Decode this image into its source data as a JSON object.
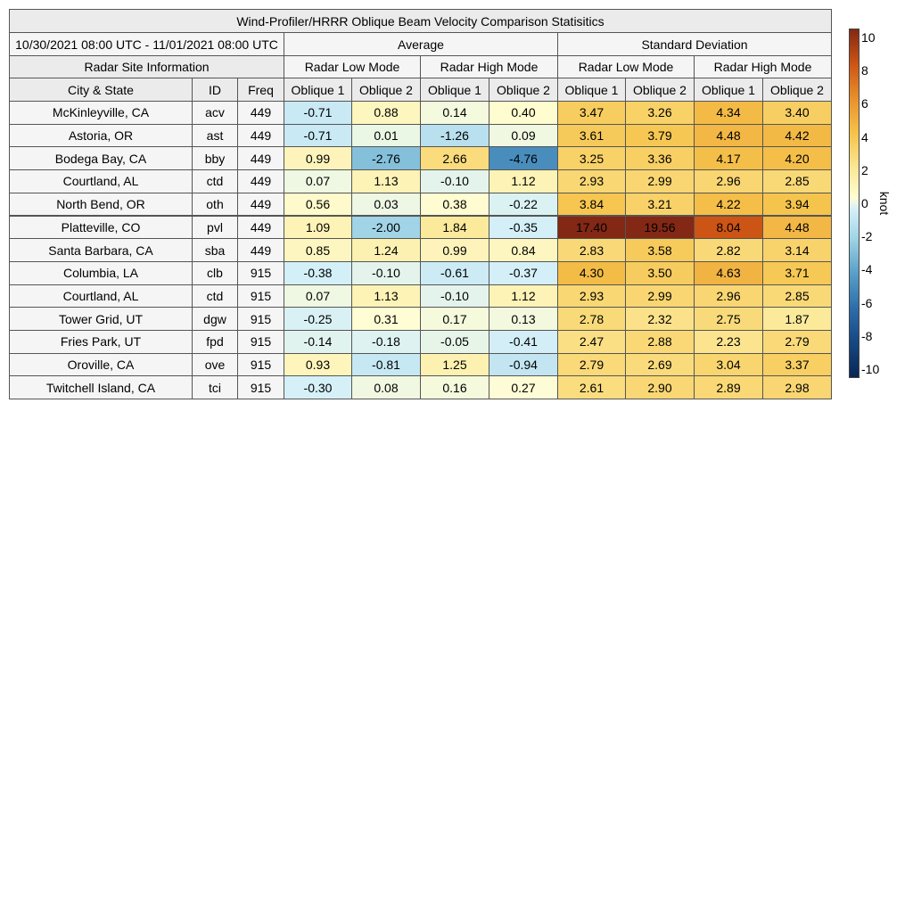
{
  "title": "Wind-Profiler/HRRR Oblique Beam Velocity Comparison Statisitics",
  "date_range": "10/30/2021 08:00 UTC - 11/01/2021 08:00 UTC",
  "groups": {
    "average": "Average",
    "std": "Standard Deviation"
  },
  "site_info_label": "Radar Site Information",
  "modes": [
    "Radar Low Mode",
    "Radar High Mode",
    "Radar Low Mode",
    "Radar High Mode"
  ],
  "col_headers": [
    "City & State",
    "ID",
    "Freq",
    "Oblique 1",
    "Oblique 2",
    "Oblique 1",
    "Oblique 2",
    "Oblique 1",
    "Oblique 2",
    "Oblique 1",
    "Oblique 2"
  ],
  "colorbar": {
    "unit": "knot",
    "range": [
      -10,
      10
    ],
    "ticks": [
      "10",
      "8",
      "6",
      "4",
      "2",
      "0",
      "-2",
      "-4",
      "-6",
      "-8",
      "-10"
    ]
  },
  "chart_data": {
    "type": "table",
    "title": "Wind-Profiler/HRRR Oblique Beam Velocity Comparison Statisitics",
    "period": "10/30/2021 08:00 UTC - 11/01/2021 08:00 UTC",
    "color_scale": {
      "unit": "knot",
      "min": -10,
      "max": 10,
      "colormap": "diverging blue-white-yellow-red"
    },
    "columns": [
      "City & State",
      "ID",
      "Freq",
      "Avg Low Oblique 1",
      "Avg Low Oblique 2",
      "Avg High Oblique 1",
      "Avg High Oblique 2",
      "Std Low Oblique 1",
      "Std Low Oblique 2",
      "Std High Oblique 1",
      "Std High Oblique 2"
    ],
    "rows": [
      {
        "city": "McKinleyville, CA",
        "id": "acv",
        "freq": "449",
        "values": [
          "-0.71",
          "0.88",
          "0.14",
          "0.40",
          "3.47",
          "3.26",
          "4.34",
          "3.40"
        ]
      },
      {
        "city": "Astoria, OR",
        "id": "ast",
        "freq": "449",
        "values": [
          "-0.71",
          "0.01",
          "-1.26",
          "0.09",
          "3.61",
          "3.79",
          "4.48",
          "4.42"
        ]
      },
      {
        "city": "Bodega Bay, CA",
        "id": "bby",
        "freq": "449",
        "values": [
          "0.99",
          "-2.76",
          "2.66",
          "-4.76",
          "3.25",
          "3.36",
          "4.17",
          "4.20"
        ]
      },
      {
        "city": "Courtland, AL",
        "id": "ctd",
        "freq": "449",
        "values": [
          "0.07",
          "1.13",
          "-0.10",
          "1.12",
          "2.93",
          "2.99",
          "2.96",
          "2.85"
        ]
      },
      {
        "city": "North Bend, OR",
        "id": "oth",
        "freq": "449",
        "values": [
          "0.56",
          "0.03",
          "0.38",
          "-0.22",
          "3.84",
          "3.21",
          "4.22",
          "3.94"
        ]
      },
      {
        "city": "Platteville, CO",
        "id": "pvl",
        "freq": "449",
        "values": [
          "1.09",
          "-2.00",
          "1.84",
          "-0.35",
          "17.40",
          "19.56",
          "8.04",
          "4.48"
        ]
      },
      {
        "city": "Santa Barbara, CA",
        "id": "sba",
        "freq": "449",
        "values": [
          "0.85",
          "1.24",
          "0.99",
          "0.84",
          "2.83",
          "3.58",
          "2.82",
          "3.14"
        ]
      },
      {
        "city": "Columbia, LA",
        "id": "clb",
        "freq": "915",
        "values": [
          "-0.38",
          "-0.10",
          "-0.61",
          "-0.37",
          "4.30",
          "3.50",
          "4.63",
          "3.71"
        ]
      },
      {
        "city": "Courtland, AL",
        "id": "ctd",
        "freq": "915",
        "values": [
          "0.07",
          "1.13",
          "-0.10",
          "1.12",
          "2.93",
          "2.99",
          "2.96",
          "2.85"
        ]
      },
      {
        "city": "Tower Grid, UT",
        "id": "dgw",
        "freq": "915",
        "values": [
          "-0.25",
          "0.31",
          "0.17",
          "0.13",
          "2.78",
          "2.32",
          "2.75",
          "1.87"
        ]
      },
      {
        "city": "Fries Park, UT",
        "id": "fpd",
        "freq": "915",
        "values": [
          "-0.14",
          "-0.18",
          "-0.05",
          "-0.41",
          "2.47",
          "2.88",
          "2.23",
          "2.79"
        ]
      },
      {
        "city": "Oroville, CA",
        "id": "ove",
        "freq": "915",
        "values": [
          "0.93",
          "-0.81",
          "1.25",
          "-0.94",
          "2.79",
          "2.69",
          "3.04",
          "3.37"
        ]
      },
      {
        "city": "Twitchell Island, CA",
        "id": "tci",
        "freq": "915",
        "values": [
          "-0.30",
          "0.08",
          "0.16",
          "0.27",
          "2.61",
          "2.90",
          "2.89",
          "2.98"
        ]
      }
    ]
  }
}
